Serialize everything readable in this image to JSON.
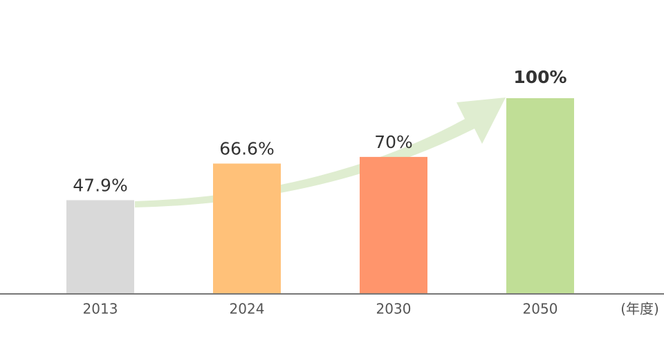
{
  "chart_data": {
    "type": "bar",
    "categories": [
      "2013",
      "2024",
      "2030",
      "2050"
    ],
    "values": [
      47.9,
      66.6,
      70,
      100
    ],
    "value_labels": [
      "47.9%",
      "66.6%",
      "70%",
      "100%"
    ],
    "colors": [
      "#d9d9d9",
      "#ffc179",
      "#ff956c",
      "#c0de96"
    ],
    "x_label": "(年度)",
    "ylim": [
      0,
      100
    ]
  }
}
